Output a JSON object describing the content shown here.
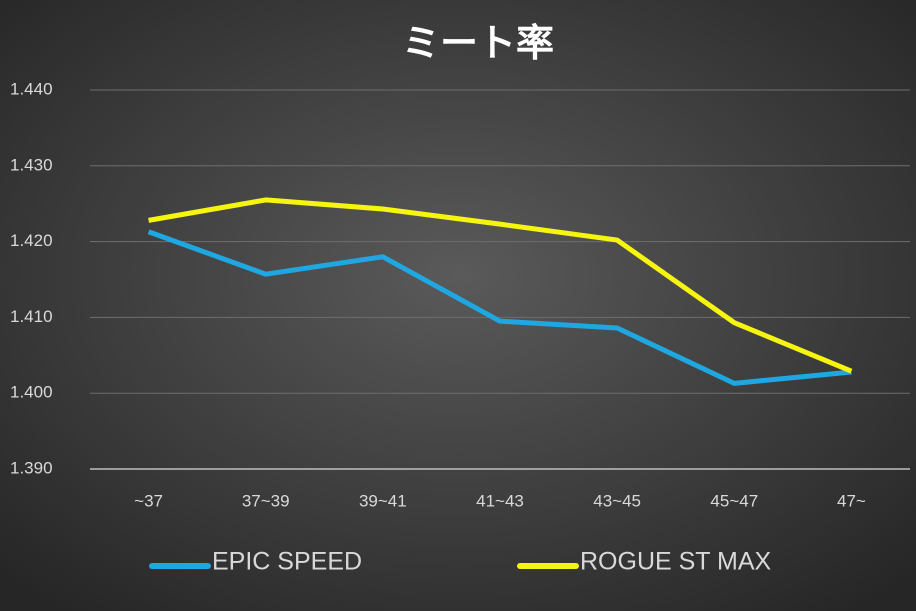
{
  "chart_data": {
    "type": "line",
    "title": "ミート率",
    "categories": [
      "~37",
      "37~39",
      "39~41",
      "41~43",
      "43~45",
      "45~47",
      "47~"
    ],
    "series": [
      {
        "name": "EPIC SPEED",
        "color": "#1ea7e1",
        "values": [
          1.4213,
          1.4157,
          1.418,
          1.4095,
          1.4086,
          1.4013,
          1.4028
        ]
      },
      {
        "name": "ROGUE ST MAX",
        "color": "#f5f510",
        "values": [
          1.4228,
          1.4255,
          1.4243,
          1.4223,
          1.4202,
          1.4093,
          1.4029
        ]
      }
    ],
    "ylim": [
      1.39,
      1.44
    ],
    "yticks": [
      {
        "value": 1.39,
        "label": "1.390"
      },
      {
        "value": 1.4,
        "label": "1.400"
      },
      {
        "value": 1.41,
        "label": "1.410"
      },
      {
        "value": 1.42,
        "label": "1.420"
      },
      {
        "value": 1.43,
        "label": "1.430"
      },
      {
        "value": 1.44,
        "label": "1.440"
      }
    ],
    "grid": true,
    "legend": "bottom"
  }
}
